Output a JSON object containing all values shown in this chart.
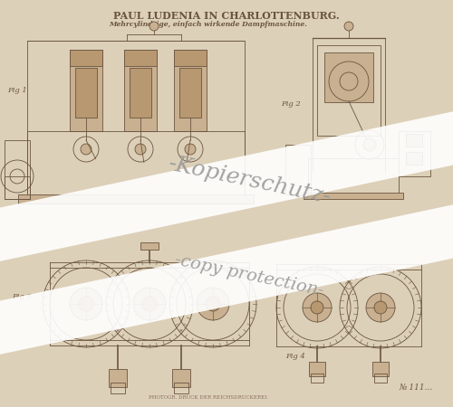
{
  "bg_color": "#ddd0b8",
  "paper_color": "#ddd0b8",
  "title_text": "PAUL LUDENIA IN CHARLOTTENBURG.",
  "subtitle_text": "Mehrcylindrige, einfach wirkende Dampfmaschine.",
  "watermark1": "-Kopierschutz-",
  "watermark2": "-copy protection-",
  "patent_num": "№ 111...",
  "bottom_text": "PHOTOGR. DRUCK DER REICHSDRUCKEREI.",
  "line_color": "#6b5540",
  "line_color_light": "#8a7060",
  "fill_light": "#c8b090",
  "fill_mid": "#b89870",
  "wm_band_color": "#f5f0e8",
  "wm_text_color": "#999999"
}
